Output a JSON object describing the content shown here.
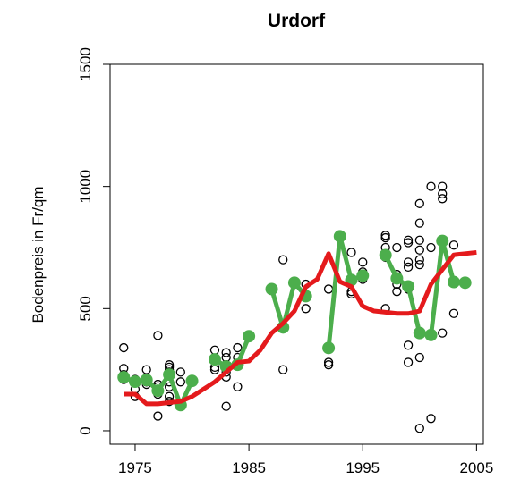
{
  "chart_data": {
    "type": "line",
    "title": "Urdorf",
    "y_label": "Bodenpreis in Fr/qm",
    "xlim": [
      1972.8,
      2005.6
    ],
    "ylim": [
      -55,
      1500
    ],
    "xticks": [
      1975,
      1985,
      1995,
      2005
    ],
    "yticks": [
      0,
      500,
      1000,
      1500
    ],
    "series": [
      {
        "style": "points",
        "color": "#000000",
        "x": [
          1974,
          1974,
          1974,
          1974,
          1974,
          1975,
          1975,
          1975,
          1976,
          1976,
          1976,
          1977,
          1977,
          1977,
          1977,
          1977,
          1978,
          1978,
          1978,
          1978,
          1978,
          1978,
          1978,
          1978,
          1979,
          1979,
          1979,
          1982,
          1982,
          1982,
          1983,
          1983,
          1983,
          1983,
          1983,
          1983,
          1984,
          1984,
          1984,
          1987,
          1988,
          1988,
          1989,
          1990,
          1990,
          1990,
          1992,
          1992,
          1992,
          1993,
          1994,
          1994,
          1994,
          1995,
          1995,
          1995,
          1997,
          1997,
          1997,
          1997,
          1997,
          1998,
          1998,
          1998,
          1998,
          1998,
          1999,
          1999,
          1999,
          1999,
          1999,
          1999,
          1999,
          2000,
          2000,
          2000,
          2000,
          2000,
          2000,
          2000,
          2000,
          2000,
          2001,
          2001,
          2001,
          2002,
          2002,
          2002,
          2002,
          2003,
          2003
        ],
        "values": [
          340,
          255,
          230,
          210,
          215,
          210,
          170,
          140,
          250,
          200,
          190,
          390,
          190,
          180,
          150,
          60,
          270,
          260,
          250,
          240,
          200,
          180,
          140,
          120,
          240,
          200,
          100,
          330,
          260,
          250,
          320,
          300,
          270,
          240,
          220,
          100,
          340,
          300,
          180,
          580,
          700,
          250,
          600,
          600,
          500,
          550,
          580,
          280,
          270,
          790,
          730,
          570,
          560,
          690,
          650,
          620,
          800,
          790,
          750,
          710,
          500,
          750,
          640,
          620,
          600,
          570,
          780,
          770,
          690,
          670,
          580,
          350,
          280,
          930,
          850,
          780,
          740,
          700,
          680,
          400,
          300,
          10,
          1000,
          750,
          50,
          1000,
          970,
          950,
          400,
          760,
          480
        ]
      },
      {
        "style": "line+points",
        "color": "#4cae4c",
        "x": [
          1974,
          1975,
          1976,
          1977,
          1978,
          1979,
          1980,
          1981,
          1982,
          1983,
          1984,
          1985,
          1986,
          1987,
          1988,
          1989,
          1990,
          1991,
          1992,
          1993,
          1994,
          1995,
          1996,
          1997,
          1998,
          1999,
          2000,
          2001,
          2002,
          2003,
          2004
        ],
        "values": [
          219,
          201,
          208,
          164,
          230,
          105,
          204,
          null,
          292,
          263,
          270,
          387,
          null,
          580,
          423,
          606,
          551,
          null,
          339,
          796,
          617,
          635,
          null,
          719,
          624,
          591,
          400,
          392,
          777,
          609,
          606
        ]
      },
      {
        "style": "line",
        "color": "#e41a1c",
        "x": [
          1974,
          1975,
          1976,
          1977,
          1978,
          1979,
          1980,
          1981,
          1982,
          1983,
          1984,
          1985,
          1986,
          1987,
          1988,
          1989,
          1990,
          1991,
          1992,
          1993,
          1994,
          1995,
          1996,
          1997,
          1998,
          1999,
          2000,
          2001,
          2002,
          2003,
          2004,
          2005
        ],
        "values": [
          150,
          150,
          110,
          110,
          115,
          120,
          140,
          170,
          200,
          240,
          280,
          285,
          330,
          400,
          440,
          490,
          590,
          620,
          725,
          610,
          590,
          510,
          490,
          485,
          480,
          480,
          490,
          600,
          660,
          720,
          725,
          730
        ]
      }
    ]
  }
}
